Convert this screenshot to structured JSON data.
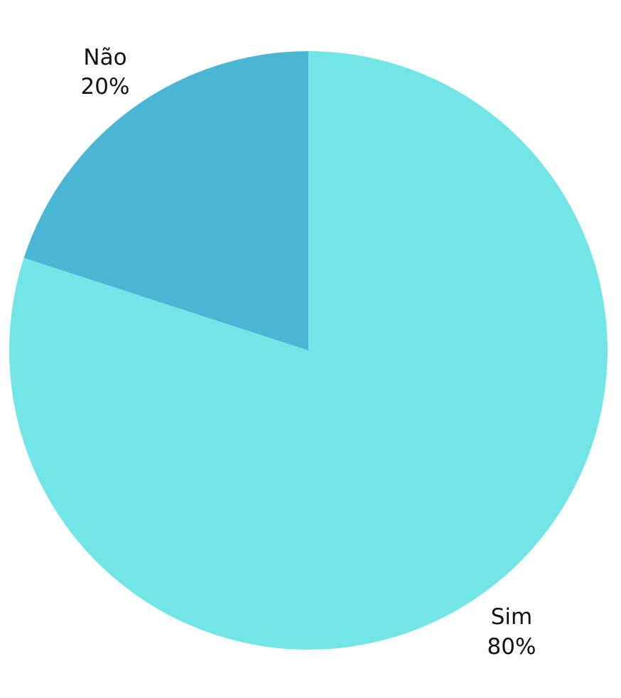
{
  "chart_data": {
    "type": "pie",
    "slices": [
      {
        "label": "Sim",
        "value": 80,
        "display": "80%",
        "color": "#72e6e6"
      },
      {
        "label": "Não",
        "value": 20,
        "display": "20%",
        "color": "#4ab6d3"
      }
    ],
    "start_angle_deg": 0,
    "direction": "clockwise"
  }
}
